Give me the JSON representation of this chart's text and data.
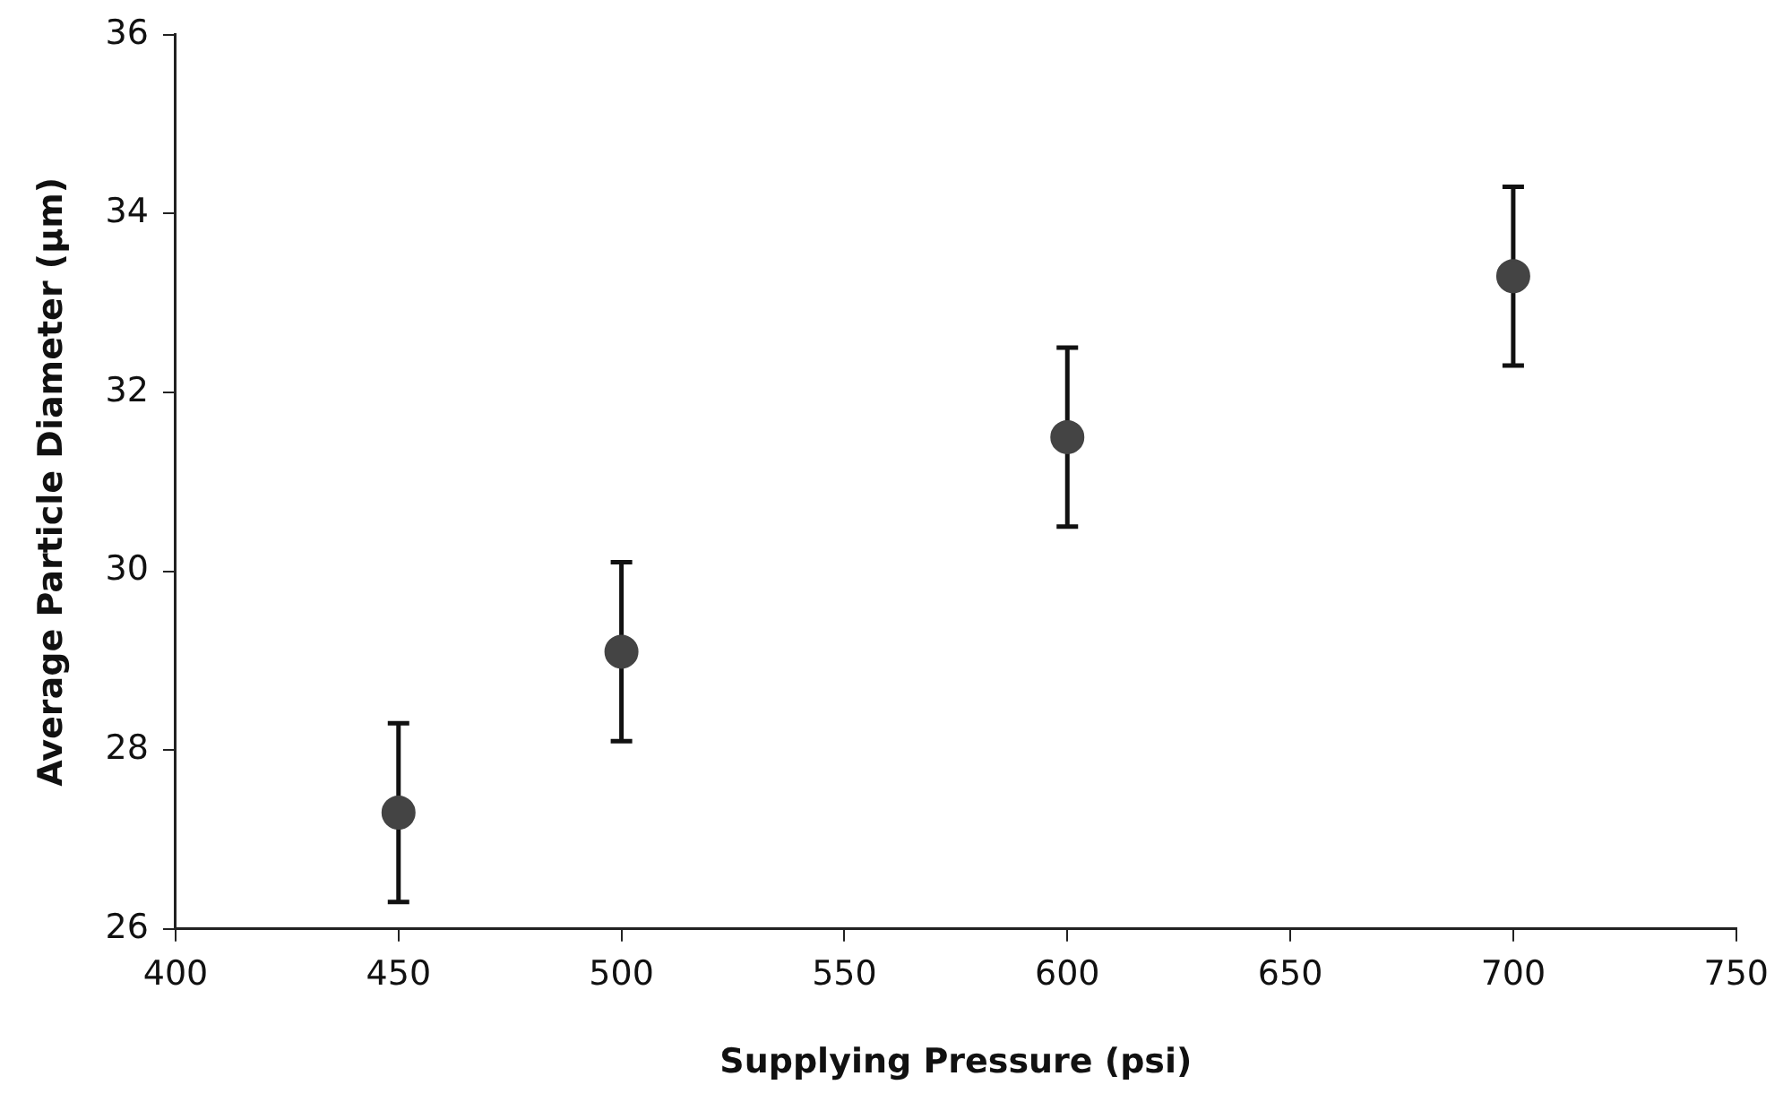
{
  "chart_data": {
    "type": "scatter",
    "xlabel": "Supplying Pressure (psi)",
    "ylabel": "Average Particle Diameter (μm)",
    "x": [
      450,
      500,
      600,
      700
    ],
    "series": [
      {
        "color": "#444444",
        "values": [
          27.3,
          29.1,
          31.5,
          33.3
        ],
        "errors": [
          1,
          1,
          1,
          1
        ]
      }
    ],
    "xlim": [
      400,
      750
    ],
    "xticks": [
      400,
      450,
      500,
      550,
      600,
      650,
      700,
      750
    ],
    "ylim": [
      26,
      36
    ],
    "yticks": [
      26,
      28,
      30,
      32,
      34,
      36
    ],
    "grid": false,
    "legend": false,
    "marker": "circle"
  }
}
